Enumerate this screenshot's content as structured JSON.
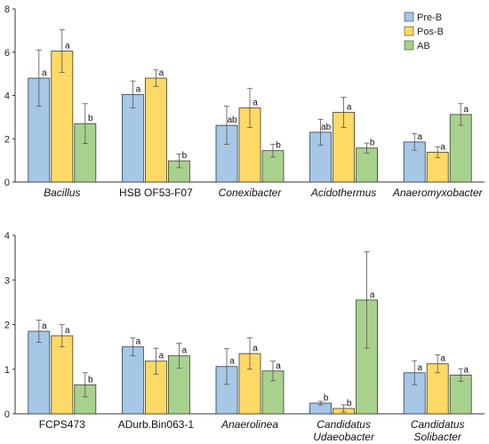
{
  "series_meta": [
    {
      "name": "Pre-B",
      "color": "#a7c7e7",
      "stroke": "#2f3c4c"
    },
    {
      "name": "Pos-B",
      "color": "#ffd966",
      "stroke": "#3e3a22"
    },
    {
      "name": "AB",
      "color": "#a9d18e",
      "stroke": "#2f4226"
    }
  ],
  "chart_data": [
    {
      "type": "bar",
      "ylim": [
        0,
        8
      ],
      "yticks": [
        "0",
        "2",
        "4",
        "6",
        "8"
      ],
      "grid": false,
      "legend": "top-right",
      "categories": [
        {
          "lines": [
            "Bacillus"
          ],
          "italic": true
        },
        {
          "lines": [
            "HSB OF53-F07"
          ],
          "italic": false
        },
        {
          "lines": [
            "Conexibacter"
          ],
          "italic": true
        },
        {
          "lines": [
            "Acidothermus"
          ],
          "italic": true
        },
        {
          "lines": [
            "Anaeromyxobacter"
          ],
          "italic": true
        }
      ],
      "series": [
        {
          "name": "Pre-B",
          "values": [
            4.8,
            4.05,
            2.62,
            2.3,
            1.85
          ],
          "errors": [
            1.3,
            0.62,
            0.88,
            0.6,
            0.38
          ],
          "labels": [
            "a",
            "a",
            "ab",
            "ab",
            "a"
          ]
        },
        {
          "name": "Pos-B",
          "values": [
            6.05,
            4.8,
            3.42,
            3.22,
            1.38
          ],
          "errors": [
            0.98,
            0.38,
            0.9,
            0.7,
            0.25
          ],
          "labels": [
            "a",
            "a",
            "a",
            "a",
            "a"
          ]
        },
        {
          "name": "AB",
          "values": [
            2.7,
            0.98,
            1.45,
            1.57,
            3.12
          ],
          "errors": [
            0.92,
            0.32,
            0.3,
            0.23,
            0.5
          ],
          "labels": [
            "b",
            "b",
            "b",
            "b",
            "a"
          ]
        }
      ]
    },
    {
      "type": "bar",
      "ylim": [
        0,
        4
      ],
      "yticks": [
        "0",
        "1",
        "2",
        "3",
        "4"
      ],
      "grid": false,
      "legend": "none",
      "categories": [
        {
          "lines": [
            "FCPS473"
          ],
          "italic": false
        },
        {
          "lines": [
            "ADurb.Bin063-1"
          ],
          "italic": false
        },
        {
          "lines": [
            "Anaerolinea"
          ],
          "italic": true
        },
        {
          "lines": [
            "Candidatus",
            "Udaeobacter"
          ],
          "italic": true
        },
        {
          "lines": [
            "Candidatus",
            "Solibacter"
          ],
          "italic": true
        }
      ],
      "series": [
        {
          "name": "Pre-B",
          "values": [
            1.85,
            1.5,
            1.06,
            0.24,
            0.92
          ],
          "errors": [
            0.25,
            0.2,
            0.4,
            0.04,
            0.27
          ],
          "labels": [
            "a",
            "a",
            "a",
            "b",
            "a"
          ]
        },
        {
          "name": "Pos-B",
          "values": [
            1.75,
            1.18,
            1.35,
            0.12,
            1.12
          ],
          "errors": [
            0.25,
            0.29,
            0.35,
            0.08,
            0.2
          ],
          "labels": [
            "a",
            "a",
            "a",
            "b",
            "a"
          ]
        },
        {
          "name": "AB",
          "values": [
            0.65,
            1.3,
            0.96,
            2.55,
            0.87
          ],
          "errors": [
            0.27,
            0.28,
            0.22,
            1.08,
            0.14
          ],
          "labels": [
            "b",
            "a",
            "a",
            "a",
            "a"
          ]
        }
      ]
    }
  ]
}
